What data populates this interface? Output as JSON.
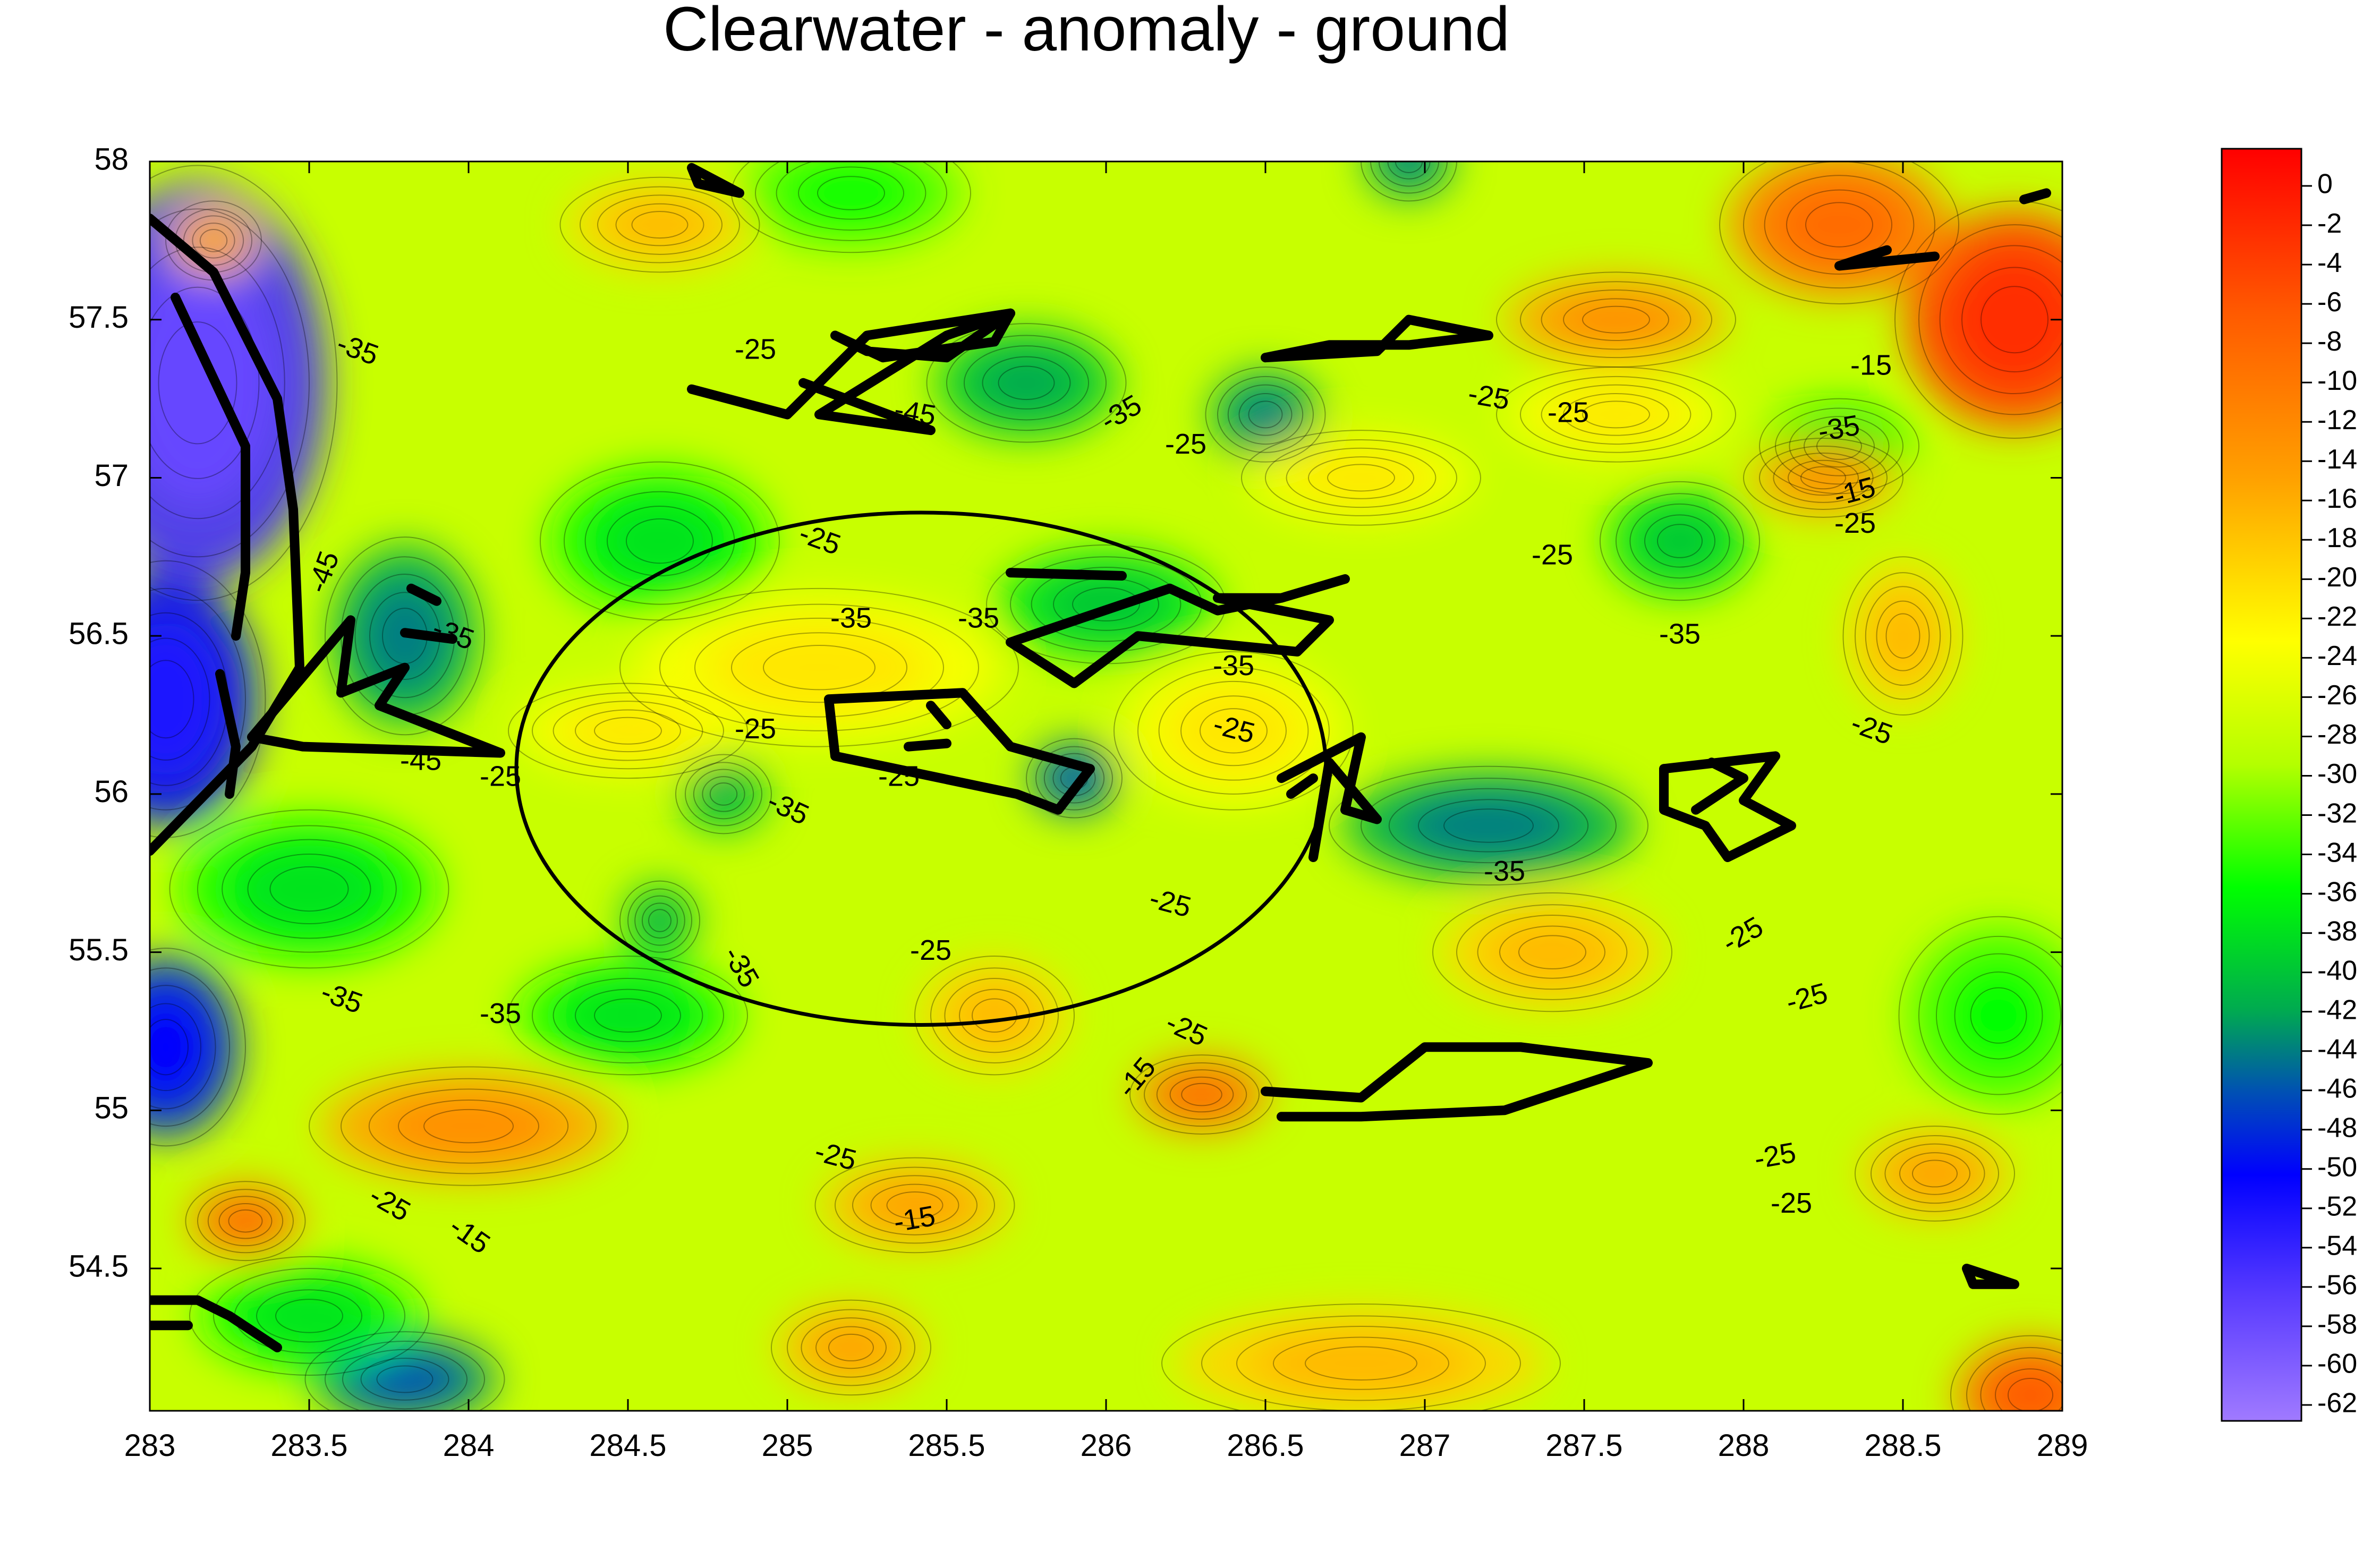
{
  "chart_data": {
    "type": "heatmap",
    "title": "Clearwater - anomaly - ground",
    "xlabel": "",
    "ylabel": "",
    "xlim": [
      283,
      289
    ],
    "ylim": [
      54.05,
      58
    ],
    "x_ticks": [
      283,
      283.5,
      284,
      284.5,
      285,
      285.5,
      286,
      286.5,
      287,
      287.5,
      288,
      288.5,
      289
    ],
    "x_tick_labels": [
      "283",
      "283.5",
      "284",
      "284.5",
      "285",
      "285.5",
      "286",
      "286.5",
      "287",
      "287.5",
      "288",
      "288.5",
      "289"
    ],
    "y_ticks": [
      54.5,
      55,
      55.5,
      56,
      56.5,
      57,
      57.5,
      58
    ],
    "y_tick_labels": [
      "54.5",
      "55",
      "55.5",
      "56",
      "56.5",
      "57",
      "57.5",
      "58"
    ],
    "colorbar": {
      "min": -62,
      "max": 0,
      "ticks": [
        0,
        -2,
        -4,
        -6,
        -8,
        -10,
        -12,
        -14,
        -16,
        -18,
        -20,
        -22,
        -24,
        -26,
        -28,
        -30,
        -32,
        -34,
        -36,
        -38,
        -40,
        -42,
        -44,
        -46,
        -48,
        -50,
        -52,
        -54,
        -56,
        -58,
        -60,
        -62
      ],
      "tick_labels": [
        "0",
        "-2",
        "-4",
        "-6",
        "-8",
        "-10",
        "-12",
        "-14",
        "-16",
        "-18",
        "-20",
        "-22",
        "-24",
        "-26",
        "-28",
        "-30",
        "-32",
        "-34",
        "-36",
        "-38",
        "-40",
        "-42",
        "-44",
        "-46",
        "-48",
        "-50",
        "-52",
        "-54",
        "-56",
        "-58",
        "-60",
        "-62"
      ],
      "stops": [
        {
          "value": 0,
          "color": "#ff0000"
        },
        {
          "value": -8,
          "color": "#ff5a00"
        },
        {
          "value": -16,
          "color": "#ffa000"
        },
        {
          "value": -24,
          "color": "#ffff00"
        },
        {
          "value": -30,
          "color": "#b4ff00"
        },
        {
          "value": -36,
          "color": "#00ff00"
        },
        {
          "value": -42,
          "color": "#00aa50"
        },
        {
          "value": -46,
          "color": "#0050b4"
        },
        {
          "value": -50,
          "color": "#0000ff"
        },
        {
          "value": -56,
          "color": "#5a3cff"
        },
        {
          "value": -62,
          "color": "#a07aff"
        }
      ]
    },
    "anomalies": [
      {
        "x": 283.15,
        "y": 57.3,
        "value": -57,
        "sx": 0.35,
        "sy": 0.55
      },
      {
        "x": 283.05,
        "y": 56.3,
        "value": -52,
        "sx": 0.25,
        "sy": 0.35
      },
      {
        "x": 283.05,
        "y": 55.2,
        "value": -50,
        "sx": 0.2,
        "sy": 0.25
      },
      {
        "x": 283.8,
        "y": 56.5,
        "value": -44,
        "sx": 0.2,
        "sy": 0.25
      },
      {
        "x": 283.8,
        "y": 54.15,
        "value": -46,
        "sx": 0.25,
        "sy": 0.12
      },
      {
        "x": 285.75,
        "y": 57.3,
        "value": -42,
        "sx": 0.25,
        "sy": 0.15
      },
      {
        "x": 286.5,
        "y": 57.2,
        "value": -44,
        "sx": 0.15,
        "sy": 0.12
      },
      {
        "x": 287.2,
        "y": 55.9,
        "value": -44,
        "sx": 0.4,
        "sy": 0.15
      },
      {
        "x": 285.9,
        "y": 56.05,
        "value": -46,
        "sx": 0.12,
        "sy": 0.1
      },
      {
        "x": 284.8,
        "y": 56,
        "value": -42,
        "sx": 0.12,
        "sy": 0.1
      },
      {
        "x": 284.6,
        "y": 55.6,
        "value": -42,
        "sx": 0.1,
        "sy": 0.1
      },
      {
        "x": 286,
        "y": 56.6,
        "value": -40,
        "sx": 0.3,
        "sy": 0.15
      },
      {
        "x": 286.95,
        "y": 58,
        "value": -44,
        "sx": 0.12,
        "sy": 0.1
      },
      {
        "x": 284.6,
        "y": 56.8,
        "value": -38,
        "sx": 0.3,
        "sy": 0.2
      },
      {
        "x": 287.8,
        "y": 56.8,
        "value": -40,
        "sx": 0.2,
        "sy": 0.15
      },
      {
        "x": 288.3,
        "y": 57.1,
        "value": -38,
        "sx": 0.2,
        "sy": 0.12
      },
      {
        "x": 283.5,
        "y": 55.7,
        "value": -38,
        "sx": 0.35,
        "sy": 0.2
      },
      {
        "x": 284.5,
        "y": 55.3,
        "value": -38,
        "sx": 0.3,
        "sy": 0.15
      },
      {
        "x": 283.5,
        "y": 54.35,
        "value": -38,
        "sx": 0.3,
        "sy": 0.15
      },
      {
        "x": 285.2,
        "y": 57.9,
        "value": -36,
        "sx": 0.3,
        "sy": 0.15
      },
      {
        "x": 288.8,
        "y": 55.3,
        "value": -36,
        "sx": 0.25,
        "sy": 0.25
      },
      {
        "x": 288.85,
        "y": 57.5,
        "value": -4,
        "sx": 0.3,
        "sy": 0.3
      },
      {
        "x": 288.3,
        "y": 57.8,
        "value": -10,
        "sx": 0.3,
        "sy": 0.2
      },
      {
        "x": 287.6,
        "y": 57.5,
        "value": -14,
        "sx": 0.3,
        "sy": 0.12
      },
      {
        "x": 288.25,
        "y": 57,
        "value": -14,
        "sx": 0.2,
        "sy": 0.1
      },
      {
        "x": 283.2,
        "y": 57.75,
        "value": -16,
        "sx": 0.12,
        "sy": 0.1
      },
      {
        "x": 284.0,
        "y": 54.95,
        "value": -14,
        "sx": 0.4,
        "sy": 0.15
      },
      {
        "x": 283.3,
        "y": 54.65,
        "value": -10,
        "sx": 0.15,
        "sy": 0.1
      },
      {
        "x": 286.3,
        "y": 55.05,
        "value": -10,
        "sx": 0.18,
        "sy": 0.1
      },
      {
        "x": 285.4,
        "y": 54.7,
        "value": -16,
        "sx": 0.25,
        "sy": 0.12
      },
      {
        "x": 288.5,
        "y": 56.5,
        "value": -18,
        "sx": 0.15,
        "sy": 0.2
      },
      {
        "x": 288.6,
        "y": 54.8,
        "value": -16,
        "sx": 0.2,
        "sy": 0.12
      },
      {
        "x": 288.9,
        "y": 54.1,
        "value": -8,
        "sx": 0.2,
        "sy": 0.15
      },
      {
        "x": 286.8,
        "y": 54.2,
        "value": -18,
        "sx": 0.5,
        "sy": 0.15
      },
      {
        "x": 285.65,
        "y": 55.3,
        "value": -18,
        "sx": 0.2,
        "sy": 0.15
      },
      {
        "x": 287.4,
        "y": 55.5,
        "value": -18,
        "sx": 0.3,
        "sy": 0.15
      },
      {
        "x": 284.6,
        "y": 57.8,
        "value": -18,
        "sx": 0.25,
        "sy": 0.12
      },
      {
        "x": 287.6,
        "y": 57.2,
        "value": -22,
        "sx": 0.3,
        "sy": 0.12
      },
      {
        "x": 285.1,
        "y": 56.4,
        "value": -22,
        "sx": 0.5,
        "sy": 0.2
      },
      {
        "x": 284.5,
        "y": 56.2,
        "value": -22,
        "sx": 0.3,
        "sy": 0.12
      },
      {
        "x": 286.4,
        "y": 56.2,
        "value": -22,
        "sx": 0.3,
        "sy": 0.2
      },
      {
        "x": 285.2,
        "y": 54.25,
        "value": -16,
        "sx": 0.2,
        "sy": 0.12
      },
      {
        "x": 286.8,
        "y": 57.0,
        "value": -22,
        "sx": 0.3,
        "sy": 0.12
      }
    ],
    "contour_labels": [
      {
        "x": 283.65,
        "y": 57.4,
        "text": "-35",
        "rotate": 20
      },
      {
        "x": 284.9,
        "y": 57.4,
        "text": "-25",
        "rotate": 0
      },
      {
        "x": 285.4,
        "y": 57.2,
        "text": "-45",
        "rotate": 10
      },
      {
        "x": 286.05,
        "y": 57.2,
        "text": "-35",
        "rotate": -30
      },
      {
        "x": 286.25,
        "y": 57.1,
        "text": "-25",
        "rotate": 0
      },
      {
        "x": 287.2,
        "y": 57.25,
        "text": "-25",
        "rotate": 10
      },
      {
        "x": 287.45,
        "y": 57.2,
        "text": "-25",
        "rotate": 0
      },
      {
        "x": 288.4,
        "y": 57.35,
        "text": "-15",
        "rotate": 0
      },
      {
        "x": 288.3,
        "y": 57.15,
        "text": "-35",
        "rotate": -10
      },
      {
        "x": 288.35,
        "y": 56.95,
        "text": "-15",
        "rotate": -15
      },
      {
        "x": 288.35,
        "y": 56.85,
        "text": "-25",
        "rotate": 0
      },
      {
        "x": 285.1,
        "y": 56.8,
        "text": "-25",
        "rotate": 20
      },
      {
        "x": 285.2,
        "y": 56.55,
        "text": "-35",
        "rotate": 0
      },
      {
        "x": 285.6,
        "y": 56.55,
        "text": "-35",
        "rotate": 0
      },
      {
        "x": 286.4,
        "y": 56.4,
        "text": "-35",
        "rotate": 0
      },
      {
        "x": 287.4,
        "y": 56.75,
        "text": "-25",
        "rotate": 0
      },
      {
        "x": 287.8,
        "y": 56.5,
        "text": "-35",
        "rotate": 0
      },
      {
        "x": 283.55,
        "y": 56.7,
        "text": "-45",
        "rotate": -70
      },
      {
        "x": 283.95,
        "y": 56.5,
        "text": "-35",
        "rotate": 20
      },
      {
        "x": 283.85,
        "y": 56.1,
        "text": "-45",
        "rotate": 0
      },
      {
        "x": 284.1,
        "y": 56.05,
        "text": "-25",
        "rotate": 0
      },
      {
        "x": 284.9,
        "y": 56.2,
        "text": "-25",
        "rotate": 0
      },
      {
        "x": 285.0,
        "y": 55.95,
        "text": "-35",
        "rotate": 25
      },
      {
        "x": 285.35,
        "y": 56.05,
        "text": "-25",
        "rotate": 0
      },
      {
        "x": 286.4,
        "y": 56.2,
        "text": "-25",
        "rotate": 15
      },
      {
        "x": 288.4,
        "y": 56.2,
        "text": "-25",
        "rotate": 20
      },
      {
        "x": 286.2,
        "y": 55.65,
        "text": "-25",
        "rotate": 15
      },
      {
        "x": 285.45,
        "y": 55.5,
        "text": "-25",
        "rotate": 0
      },
      {
        "x": 284.85,
        "y": 55.45,
        "text": "-35",
        "rotate": 60
      },
      {
        "x": 283.6,
        "y": 55.35,
        "text": "-35",
        "rotate": 20
      },
      {
        "x": 284.1,
        "y": 55.3,
        "text": "-35",
        "rotate": 0
      },
      {
        "x": 287.25,
        "y": 55.75,
        "text": "-35",
        "rotate": 0
      },
      {
        "x": 288.0,
        "y": 55.55,
        "text": "-25",
        "rotate": -30
      },
      {
        "x": 288.2,
        "y": 55.35,
        "text": "-25",
        "rotate": -15
      },
      {
        "x": 286.25,
        "y": 55.25,
        "text": "-25",
        "rotate": 25
      },
      {
        "x": 286.1,
        "y": 55.1,
        "text": "-15",
        "rotate": -50
      },
      {
        "x": 285.15,
        "y": 54.85,
        "text": "-25",
        "rotate": 15
      },
      {
        "x": 285.4,
        "y": 54.65,
        "text": "-15",
        "rotate": -10
      },
      {
        "x": 283.75,
        "y": 54.7,
        "text": "-25",
        "rotate": 30
      },
      {
        "x": 284.0,
        "y": 54.6,
        "text": "-15",
        "rotate": 35
      },
      {
        "x": 288.1,
        "y": 54.85,
        "text": "-25",
        "rotate": -10
      },
      {
        "x": 288.15,
        "y": 54.7,
        "text": "-25",
        "rotate": 0
      }
    ],
    "circle": {
      "cx": 285.42,
      "cy": 56.08,
      "rx": 1.27,
      "ry": 0.81
    },
    "outlines": [
      [
        [
          283,
          57.82
        ],
        [
          283.2,
          57.65
        ],
        [
          283.4,
          57.25
        ],
        [
          283.45,
          56.9
        ],
        [
          283.47,
          56.4
        ],
        [
          283.32,
          56.15
        ],
        [
          283,
          55.82
        ]
      ],
      [
        [
          283.08,
          57.57
        ],
        [
          283.3,
          57.1
        ],
        [
          283.3,
          56.7
        ],
        [
          283.27,
          56.5
        ]
      ],
      [
        [
          283.22,
          56.38
        ],
        [
          283.27,
          56.15
        ],
        [
          283.25,
          56.0
        ]
      ],
      [
        [
          283.32,
          56.18
        ],
        [
          283.63,
          56.55
        ],
        [
          283.6,
          56.32
        ],
        [
          283.8,
          56.4
        ],
        [
          283.72,
          56.28
        ],
        [
          284.1,
          56.13
        ],
        [
          283.48,
          56.15
        ],
        [
          283.32,
          56.18
        ]
      ],
      [
        [
          283.9,
          56.61
        ],
        [
          283.82,
          56.65
        ]
      ],
      [
        [
          283.8,
          56.51
        ],
        [
          283.95,
          56.49
        ]
      ],
      [
        [
          284.7,
          57.98
        ],
        [
          284.85,
          57.9
        ],
        [
          284.72,
          57.93
        ],
        [
          284.7,
          57.98
        ]
      ],
      [
        [
          284.7,
          57.28
        ],
        [
          285.0,
          57.2
        ],
        [
          285.25,
          57.45
        ],
        [
          285.7,
          57.52
        ],
        [
          285.5,
          57.45
        ],
        [
          285.1,
          57.2
        ],
        [
          285.45,
          57.15
        ],
        [
          285.05,
          57.3
        ]
      ],
      [
        [
          285.15,
          57.45
        ],
        [
          285.25,
          57.4
        ],
        [
          285.5,
          57.38
        ],
        [
          285.7,
          57.52
        ],
        [
          285.65,
          57.43
        ],
        [
          285.3,
          57.38
        ],
        [
          285.15,
          57.45
        ]
      ],
      [
        [
          285.7,
          56.7
        ],
        [
          286.05,
          56.69
        ]
      ],
      [
        [
          286.2,
          56.65
        ],
        [
          286.35,
          56.58
        ],
        [
          286.55,
          56.62
        ],
        [
          286.75,
          56.68
        ],
        [
          286.55,
          56.62
        ],
        [
          286.35,
          56.62
        ],
        [
          286.7,
          56.55
        ],
        [
          286.6,
          56.45
        ],
        [
          286.1,
          56.5
        ],
        [
          285.9,
          56.35
        ],
        [
          285.7,
          56.48
        ],
        [
          286.2,
          56.65
        ]
      ],
      [
        [
          285.13,
          56.3
        ],
        [
          285.55,
          56.32
        ],
        [
          285.7,
          56.15
        ],
        [
          285.95,
          56.08
        ],
        [
          285.85,
          55.95
        ],
        [
          285.72,
          56.0
        ],
        [
          285.15,
          56.12
        ],
        [
          285.13,
          56.3
        ]
      ],
      [
        [
          285.45,
          56.28
        ],
        [
          285.5,
          56.22
        ]
      ],
      [
        [
          285.38,
          56.15
        ],
        [
          285.5,
          56.16
        ]
      ],
      [
        [
          286.55,
          56.05
        ],
        [
          286.8,
          56.18
        ],
        [
          286.75,
          55.95
        ],
        [
          286.85,
          55.92
        ],
        [
          286.7,
          56.1
        ],
        [
          286.65,
          55.8
        ]
      ],
      [
        [
          286.65,
          56.05
        ],
        [
          286.58,
          56.0
        ]
      ],
      [
        [
          287.75,
          56.08
        ],
        [
          288.1,
          56.12
        ],
        [
          288.0,
          55.98
        ],
        [
          288.15,
          55.9
        ],
        [
          287.95,
          55.8
        ],
        [
          287.88,
          55.9
        ],
        [
          287.75,
          55.95
        ],
        [
          287.75,
          56.08
        ]
      ],
      [
        [
          287.9,
          56.1
        ],
        [
          288.0,
          56.05
        ],
        [
          287.85,
          55.95
        ]
      ],
      [
        [
          286.5,
          57.38
        ],
        [
          286.85,
          57.4
        ],
        [
          286.95,
          57.5
        ],
        [
          287.2,
          57.45
        ],
        [
          286.95,
          57.42
        ],
        [
          286.7,
          57.42
        ],
        [
          286.5,
          57.38
        ]
      ],
      [
        [
          288.45,
          57.72
        ],
        [
          288.3,
          57.67
        ],
        [
          288.6,
          57.7
        ]
      ],
      [
        [
          288.95,
          57.9
        ],
        [
          288.88,
          57.88
        ]
      ],
      [
        [
          286.5,
          55.06
        ],
        [
          286.8,
          55.04
        ],
        [
          287.0,
          55.2
        ],
        [
          287.3,
          55.2
        ],
        [
          287.7,
          55.15
        ],
        [
          287.25,
          55.0
        ],
        [
          286.8,
          54.98
        ],
        [
          286.55,
          54.98
        ]
      ],
      [
        [
          288.7,
          54.5
        ],
        [
          288.85,
          54.45
        ],
        [
          288.72,
          54.45
        ],
        [
          288.7,
          54.5
        ]
      ],
      [
        [
          283.0,
          54.4
        ],
        [
          283.15,
          54.4
        ],
        [
          283.25,
          54.35
        ],
        [
          283.4,
          54.25
        ]
      ],
      [
        [
          283.0,
          54.32
        ],
        [
          283.12,
          54.32
        ]
      ]
    ]
  }
}
